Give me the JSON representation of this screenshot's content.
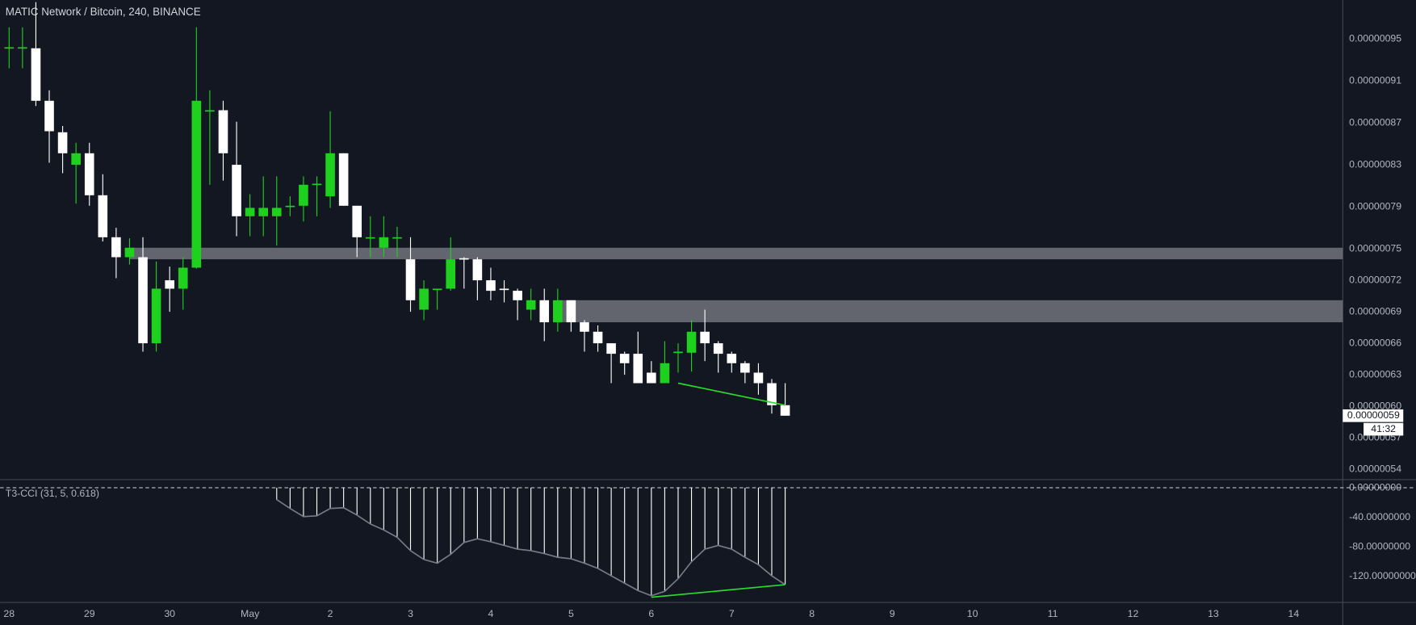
{
  "chart_data": [
    {
      "type": "candlestick",
      "title": "MATIC Network / Bitcoin, 240, BINANCE",
      "x": [
        0,
        4,
        8,
        12,
        16,
        20,
        24,
        28,
        32,
        36,
        40,
        44,
        48,
        52,
        56,
        60,
        64,
        68,
        72,
        76,
        80,
        84,
        88,
        92,
        96,
        100,
        104,
        108,
        112,
        116,
        120,
        124,
        128,
        132,
        136,
        140,
        144,
        148,
        152,
        156,
        160,
        164,
        168,
        172,
        176,
        180,
        184,
        188,
        192,
        196,
        200,
        204,
        208,
        212,
        216,
        220,
        224,
        228,
        232
      ],
      "open": [
        9.41e-07,
        9.41e-07,
        9.41e-07,
        8.91e-07,
        8.61e-07,
        8.3e-07,
        8.41e-07,
        8.01e-07,
        7.61e-07,
        7.42e-07,
        7.42e-07,
        6.6e-07,
        7.2e-07,
        7.12e-07,
        7.32e-07,
        8.81e-07,
        8.82e-07,
        8.3e-07,
        7.81e-07,
        7.81e-07,
        7.81e-07,
        7.9e-07,
        7.91e-07,
        8.11e-07,
        8e-07,
        8.41e-07,
        7.91e-07,
        7.6e-07,
        7.51e-07,
        7.6e-07,
        7.4e-07,
        6.92e-07,
        7.11e-07,
        7.12e-07,
        7.41e-07,
        7.4e-07,
        7.2e-07,
        7.12e-07,
        7.1e-07,
        6.92e-07,
        7.01e-07,
        6.8e-07,
        7.01e-07,
        6.8e-07,
        6.71e-07,
        6.6e-07,
        6.5e-07,
        6.5e-07,
        6.32e-07,
        6.22e-07,
        6.51e-07,
        6.51e-07,
        6.71e-07,
        6.6e-07,
        6.5e-07,
        6.41e-07,
        6.32e-07,
        6.22e-07,
        6.01e-07
      ],
      "high": [
        9.61e-07,
        9.61e-07,
        9.85e-07,
        9.01e-07,
        8.67e-07,
        8.51e-07,
        8.51e-07,
        8.21e-07,
        7.7e-07,
        7.6e-07,
        7.61e-07,
        7.38e-07,
        7.33e-07,
        7.42e-07,
        9.61e-07,
        9.01e-07,
        8.91e-07,
        8.71e-07,
        8.02e-07,
        8.19e-07,
        8.19e-07,
        8e-07,
        8.19e-07,
        8.19e-07,
        8.81e-07,
        8.41e-07,
        7.91e-07,
        7.81e-07,
        7.81e-07,
        7.71e-07,
        7.61e-07,
        7.2e-07,
        7.12e-07,
        7.61e-07,
        7.42e-07,
        7.42e-07,
        7.32e-07,
        7.2e-07,
        7.12e-07,
        7.12e-07,
        7.12e-07,
        7.12e-07,
        7.01e-07,
        6.82e-07,
        6.77e-07,
        6.6e-07,
        6.52e-07,
        6.71e-07,
        6.43e-07,
        6.62e-07,
        6.6e-07,
        6.82e-07,
        6.92e-07,
        6.62e-07,
        6.52e-07,
        6.43e-07,
        6.41e-07,
        6.26e-07,
        6.22e-07
      ],
      "low": [
        9.22e-07,
        9.22e-07,
        8.86e-07,
        8.32e-07,
        8.22e-07,
        7.93e-07,
        7.91e-07,
        7.57e-07,
        7.22e-07,
        7.35e-07,
        6.52e-07,
        6.52e-07,
        6.9e-07,
        6.92e-07,
        7.31e-07,
        8.11e-07,
        8.15e-07,
        7.62e-07,
        7.62e-07,
        7.62e-07,
        7.53e-07,
        7.81e-07,
        7.76e-07,
        7.81e-07,
        7.89e-07,
        7.91e-07,
        7.42e-07,
        7.42e-07,
        7.42e-07,
        7.42e-07,
        6.9e-07,
        6.82e-07,
        6.92e-07,
        7.1e-07,
        7.12e-07,
        7.01e-07,
        7.01e-07,
        6.99e-07,
        6.82e-07,
        6.82e-07,
        6.62e-07,
        6.71e-07,
        6.71e-07,
        6.52e-07,
        6.52e-07,
        6.22e-07,
        6.3e-07,
        6.22e-07,
        6.22e-07,
        6.22e-07,
        6.32e-07,
        6.33e-07,
        6.43e-07,
        6.32e-07,
        6.32e-07,
        6.22e-07,
        6.11e-07,
        5.93e-07,
        5.91e-07
      ],
      "close": [
        9.42e-07,
        9.42e-07,
        8.91e-07,
        8.62e-07,
        8.41e-07,
        8.41e-07,
        8.01e-07,
        7.61e-07,
        7.42e-07,
        7.51e-07,
        6.6e-07,
        7.12e-07,
        7.12e-07,
        7.32e-07,
        8.91e-07,
        8.82e-07,
        8.41e-07,
        7.81e-07,
        7.89e-07,
        7.89e-07,
        7.89e-07,
        7.91e-07,
        8.11e-07,
        8.12e-07,
        8.41e-07,
        7.91e-07,
        7.61e-07,
        7.61e-07,
        7.61e-07,
        7.61e-07,
        7.01e-07,
        7.12e-07,
        7.12e-07,
        7.4e-07,
        7.4e-07,
        7.2e-07,
        7.1e-07,
        7.11e-07,
        7.01e-07,
        7.01e-07,
        6.8e-07,
        7.01e-07,
        6.8e-07,
        6.71e-07,
        6.6e-07,
        6.5e-07,
        6.41e-07,
        6.22e-07,
        6.22e-07,
        6.41e-07,
        6.52e-07,
        6.71e-07,
        6.6e-07,
        6.5e-07,
        6.41e-07,
        6.32e-07,
        6.22e-07,
        6.01e-07,
        5.91e-07
      ],
      "up_color": "#1fd11f",
      "down_color": "#ffffff",
      "xlim": [
        -2.7,
        398.7
      ],
      "xticks": [
        {
          "value": 0,
          "label": "28"
        },
        {
          "value": 24,
          "label": "29"
        },
        {
          "value": 48,
          "label": "30"
        },
        {
          "value": 72,
          "label": "May"
        },
        {
          "value": 96,
          "label": "2"
        },
        {
          "value": 120,
          "label": "3"
        },
        {
          "value": 144,
          "label": "4"
        },
        {
          "value": 168,
          "label": "5"
        },
        {
          "value": 192,
          "label": "6"
        },
        {
          "value": 216,
          "label": "7"
        },
        {
          "value": 240,
          "label": "8"
        },
        {
          "value": 264,
          "label": "9"
        },
        {
          "value": 288,
          "label": "10"
        },
        {
          "value": 312,
          "label": "11"
        },
        {
          "value": 336,
          "label": "12"
        },
        {
          "value": 360,
          "label": "13"
        },
        {
          "value": 384,
          "label": "14"
        }
      ],
      "ylim": [
        5.31e-07,
        9.87e-07
      ],
      "yticks": [
        {
          "value": 9.5e-07,
          "label": "0.00000095"
        },
        {
          "value": 9.1e-07,
          "label": "0.00000091"
        },
        {
          "value": 8.7e-07,
          "label": "0.00000087"
        },
        {
          "value": 8.3e-07,
          "label": "0.00000083"
        },
        {
          "value": 7.9e-07,
          "label": "0.00000079"
        },
        {
          "value": 7.5e-07,
          "label": "0.00000075"
        },
        {
          "value": 7.2e-07,
          "label": "0.00000072"
        },
        {
          "value": 6.9e-07,
          "label": "0.00000069"
        },
        {
          "value": 6.6e-07,
          "label": "0.00000066"
        },
        {
          "value": 6.3e-07,
          "label": "0.00000063"
        },
        {
          "value": 6e-07,
          "label": "0.00000060"
        },
        {
          "value": 5.7e-07,
          "label": "0.00000057"
        },
        {
          "value": 5.4e-07,
          "label": "0.00000054"
        }
      ],
      "grid": false,
      "zones": [
        {
          "x": 36,
          "y": [
            7.4e-07,
            7.51e-07
          ]
        },
        {
          "x": 164,
          "y": [
            6.8e-07,
            7.01e-07
          ]
        }
      ],
      "zone_color": "#6b6e77",
      "lines": [
        {
          "x": [
            200,
            232
          ],
          "y": [
            6.22e-07,
            6.01e-07
          ]
        }
      ],
      "line_color": "#2bd92b",
      "last_price": {
        "value": 5.91e-07,
        "label": "0.00000059"
      },
      "countdown": "41:32"
    },
    {
      "type": "bar",
      "title": "T3-CCI (31, 5, 0.618)",
      "x": [
        80,
        84,
        88,
        92,
        96,
        100,
        104,
        108,
        112,
        116,
        120,
        124,
        128,
        132,
        136,
        140,
        144,
        148,
        152,
        156,
        160,
        164,
        168,
        172,
        176,
        180,
        184,
        188,
        192,
        196,
        200,
        204,
        208,
        212,
        216,
        220,
        224,
        228,
        232
      ],
      "values": [
        -16,
        -28,
        -39,
        -38,
        -28,
        -27,
        -37,
        -49,
        -57,
        -67,
        -85,
        -97,
        -102,
        -90,
        -74,
        -69,
        -73,
        -78,
        -83,
        -85,
        -89,
        -94,
        -96,
        -102,
        -109,
        -119,
        -129,
        -139,
        -146,
        -140,
        -123,
        -100,
        -83,
        -78,
        -83,
        -94,
        -104,
        -119,
        -131
      ],
      "color": "#ffffff",
      "curve_color": "#787b86",
      "xlim": [
        -2.7,
        398.7
      ],
      "ylim": [
        -155,
        11
      ],
      "yticks": [
        {
          "value": 0,
          "label": "0.00000000"
        },
        {
          "value": -40,
          "label": "-40.00000000"
        },
        {
          "value": -80,
          "label": "-80.00000000"
        },
        {
          "value": -120,
          "label": "-120.00000000"
        }
      ],
      "hlines": [
        0
      ],
      "lines": [
        {
          "x": [
            192,
            232
          ],
          "y": [
            -148,
            -131
          ]
        }
      ],
      "line_color": "#2bd92b"
    }
  ]
}
